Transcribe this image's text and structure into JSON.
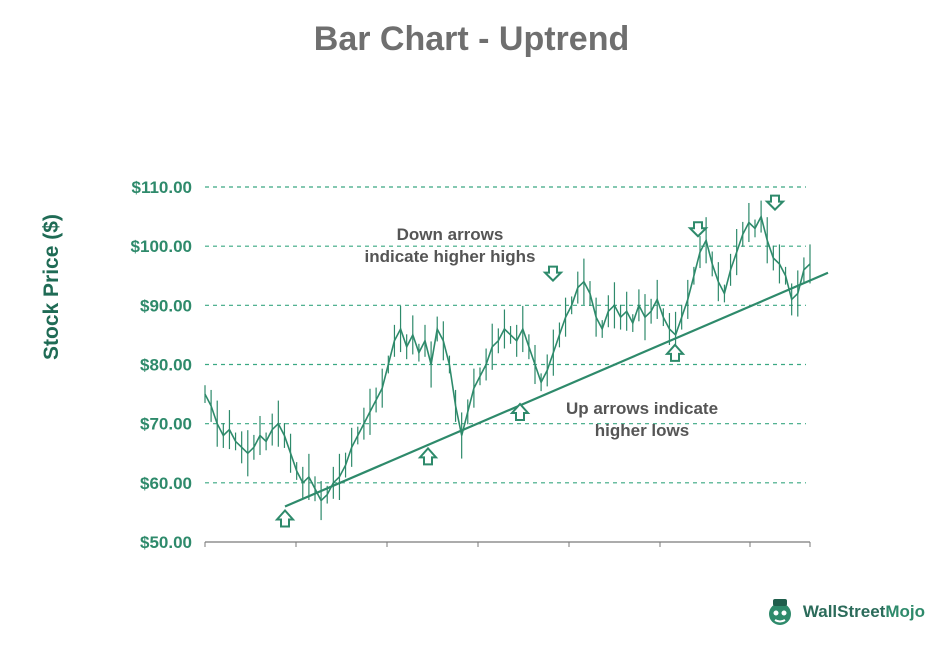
{
  "chart_data": {
    "type": "line",
    "title": "Bar Chart - Uptrend",
    "ylabel": "Stock Price ($)",
    "ylim": [
      50,
      110
    ],
    "yticks": [
      "$110.00",
      "$100.00",
      "$90.00",
      "$80.00",
      "$70.00",
      "$60.00",
      "$50.00"
    ],
    "ytick_values": [
      110,
      100,
      90,
      80,
      70,
      60,
      50
    ],
    "grid": "horizontal dashed",
    "series": [
      {
        "values": [
          75,
          73,
          70,
          68,
          69,
          67,
          66,
          65,
          66,
          68,
          67,
          69,
          70,
          68,
          65,
          62,
          60,
          61,
          59,
          57,
          58,
          60,
          61,
          63,
          66,
          68,
          70,
          72,
          74,
          76,
          80,
          84,
          86,
          83,
          85,
          82,
          84,
          80,
          86,
          84,
          80,
          73,
          68,
          72,
          76,
          78,
          80,
          83,
          84,
          86,
          85,
          84,
          86,
          83,
          80,
          77,
          79,
          82,
          85,
          88,
          90,
          93,
          94,
          92,
          88,
          86,
          89,
          90,
          88,
          89,
          87,
          90,
          88,
          89,
          91,
          88,
          86,
          85,
          88,
          91,
          95,
          99,
          101,
          97,
          94,
          92,
          96,
          99,
          102,
          104,
          103,
          105,
          101,
          98,
          97,
          95,
          91,
          92,
          96,
          97
        ]
      }
    ],
    "trendline": {
      "start": 56,
      "end": 95.5
    },
    "annotations": [
      {
        "lines": [
          "Down arrows",
          "indicate higher highs"
        ]
      },
      {
        "lines": [
          "Up arrows indicate",
          "higher lows"
        ]
      }
    ],
    "up_arrow_values": [
      56,
      66.5,
      74,
      84
    ],
    "down_arrow_values": [
      93.5,
      101,
      105.5
    ]
  },
  "brand": {
    "logo_part1": "Wall",
    "logo_part2": "Street",
    "logo_part3": "Mojo",
    "color": "#2e8a6b"
  },
  "colors": {
    "line": "#2e8a6b",
    "grid": "#3aa882",
    "axis": "#7a7a7a",
    "arrow": "#2e8a6b"
  }
}
